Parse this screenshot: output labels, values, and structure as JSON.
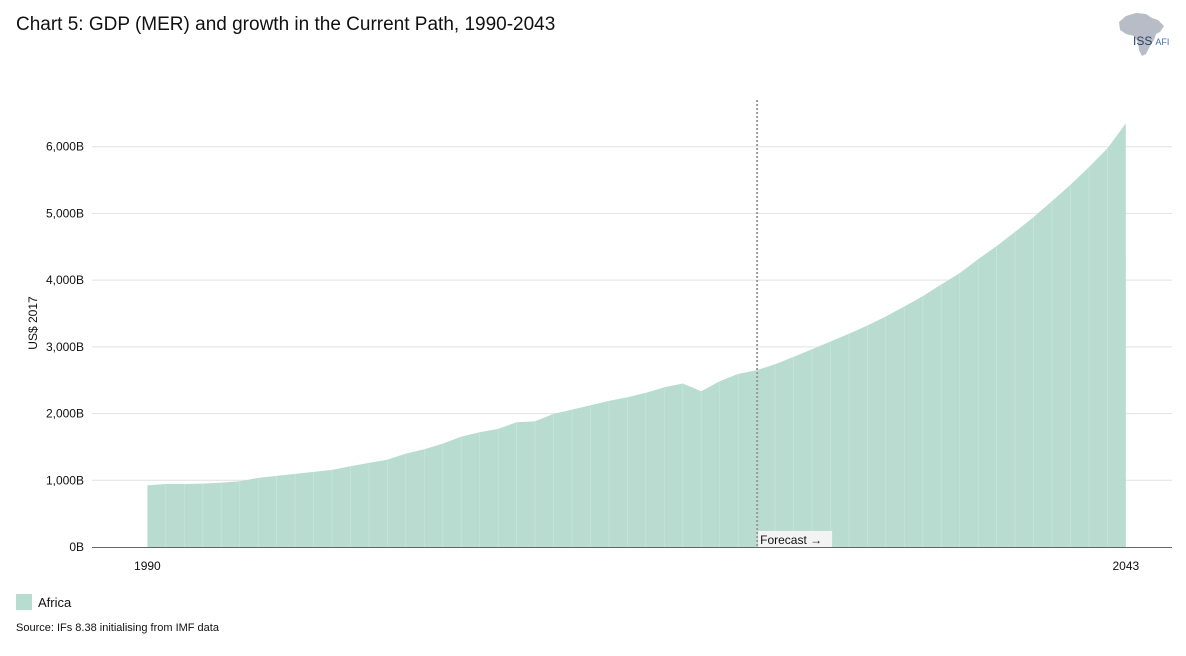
{
  "chart_data": {
    "type": "area",
    "title": "Chart 5: GDP (MER) and growth in the Current Path, 1990-2043",
    "ylabel": "US$ 2017",
    "xlabel": "",
    "x_tick_labels": [
      "1990",
      "2043"
    ],
    "y_ticks": [
      {
        "value": 0,
        "label": "0B"
      },
      {
        "value": 1000,
        "label": "1,000B"
      },
      {
        "value": 2000,
        "label": "2,000B"
      },
      {
        "value": 3000,
        "label": "3,000B"
      },
      {
        "value": 4000,
        "label": "4,000B"
      },
      {
        "value": 5000,
        "label": "5,000B"
      },
      {
        "value": 6000,
        "label": "6,000B"
      }
    ],
    "ylim": [
      0,
      6700
    ],
    "xlim": [
      1987,
      2045.5
    ],
    "grid": true,
    "legend_position": "bottom-left",
    "forecast": {
      "year": 2023,
      "label": "Forecast →"
    },
    "series": [
      {
        "name": "Africa",
        "color": "#b9dcd0",
        "x": [
          1990,
          1991,
          1992,
          1993,
          1994,
          1995,
          1996,
          1997,
          1998,
          1999,
          2000,
          2001,
          2002,
          2003,
          2004,
          2005,
          2006,
          2007,
          2008,
          2009,
          2010,
          2011,
          2012,
          2013,
          2014,
          2015,
          2016,
          2017,
          2018,
          2019,
          2020,
          2021,
          2022,
          2023,
          2024,
          2025,
          2026,
          2027,
          2028,
          2029,
          2030,
          2031,
          2032,
          2033,
          2034,
          2035,
          2036,
          2037,
          2038,
          2039,
          2040,
          2041,
          2042,
          2043
        ],
        "values": [
          925,
          945,
          945,
          950,
          965,
          985,
          1035,
          1065,
          1095,
          1125,
          1155,
          1210,
          1260,
          1310,
          1400,
          1465,
          1550,
          1655,
          1720,
          1770,
          1870,
          1885,
          1995,
          2060,
          2125,
          2190,
          2245,
          2310,
          2395,
          2450,
          2335,
          2485,
          2595,
          2650,
          2740,
          2850,
          2965,
          3080,
          3195,
          3320,
          3455,
          3605,
          3760,
          3935,
          4105,
          4315,
          4510,
          4725,
          4945,
          5185,
          5430,
          5695,
          5975,
          6350
        ]
      }
    ]
  },
  "legend": {
    "label": "Africa",
    "color": "#b9dcd0"
  },
  "source": "Source: IFs 8.38 initialising from IMF data",
  "logo": {
    "main": "ISS",
    "sub": "AFI",
    "icon": "africa-map-icon"
  }
}
